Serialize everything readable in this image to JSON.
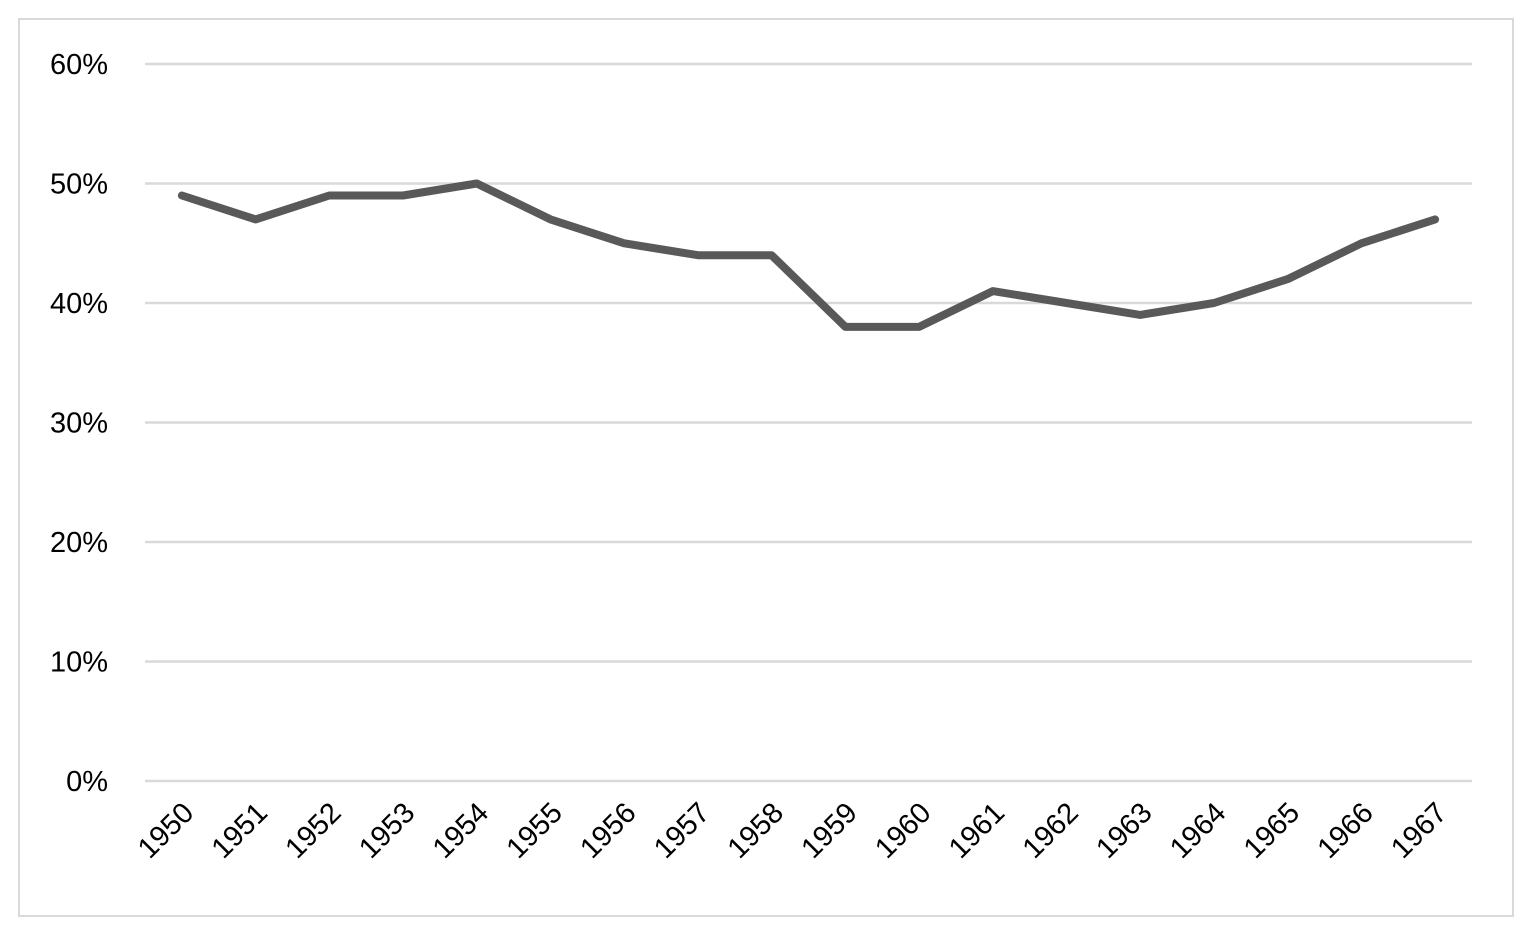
{
  "chart_data": {
    "type": "line",
    "title": "",
    "xlabel": "",
    "ylabel": "",
    "categories": [
      "1950",
      "1951",
      "1952",
      "1953",
      "1954",
      "1955",
      "1956",
      "1957",
      "1958",
      "1959",
      "1960",
      "1961",
      "1962",
      "1963",
      "1964",
      "1965",
      "1966",
      "1967"
    ],
    "series": [
      {
        "values": [
          49,
          47,
          49,
          49,
          50,
          47,
          45,
          44,
          44,
          38,
          38,
          41,
          40,
          39,
          40,
          42,
          45,
          47
        ]
      }
    ],
    "ylim": [
      0,
      60
    ],
    "yticks": [
      0,
      10,
      20,
      30,
      40,
      50,
      60
    ],
    "ytick_labels": [
      "0%",
      "10%",
      "20%",
      "30%",
      "40%",
      "50%",
      "60%"
    ],
    "grid": true,
    "legend": "none",
    "colors": {
      "line": "#595959",
      "grid": "#d9d9d9",
      "frame": "#d9d9d9",
      "text": "#000000"
    }
  }
}
